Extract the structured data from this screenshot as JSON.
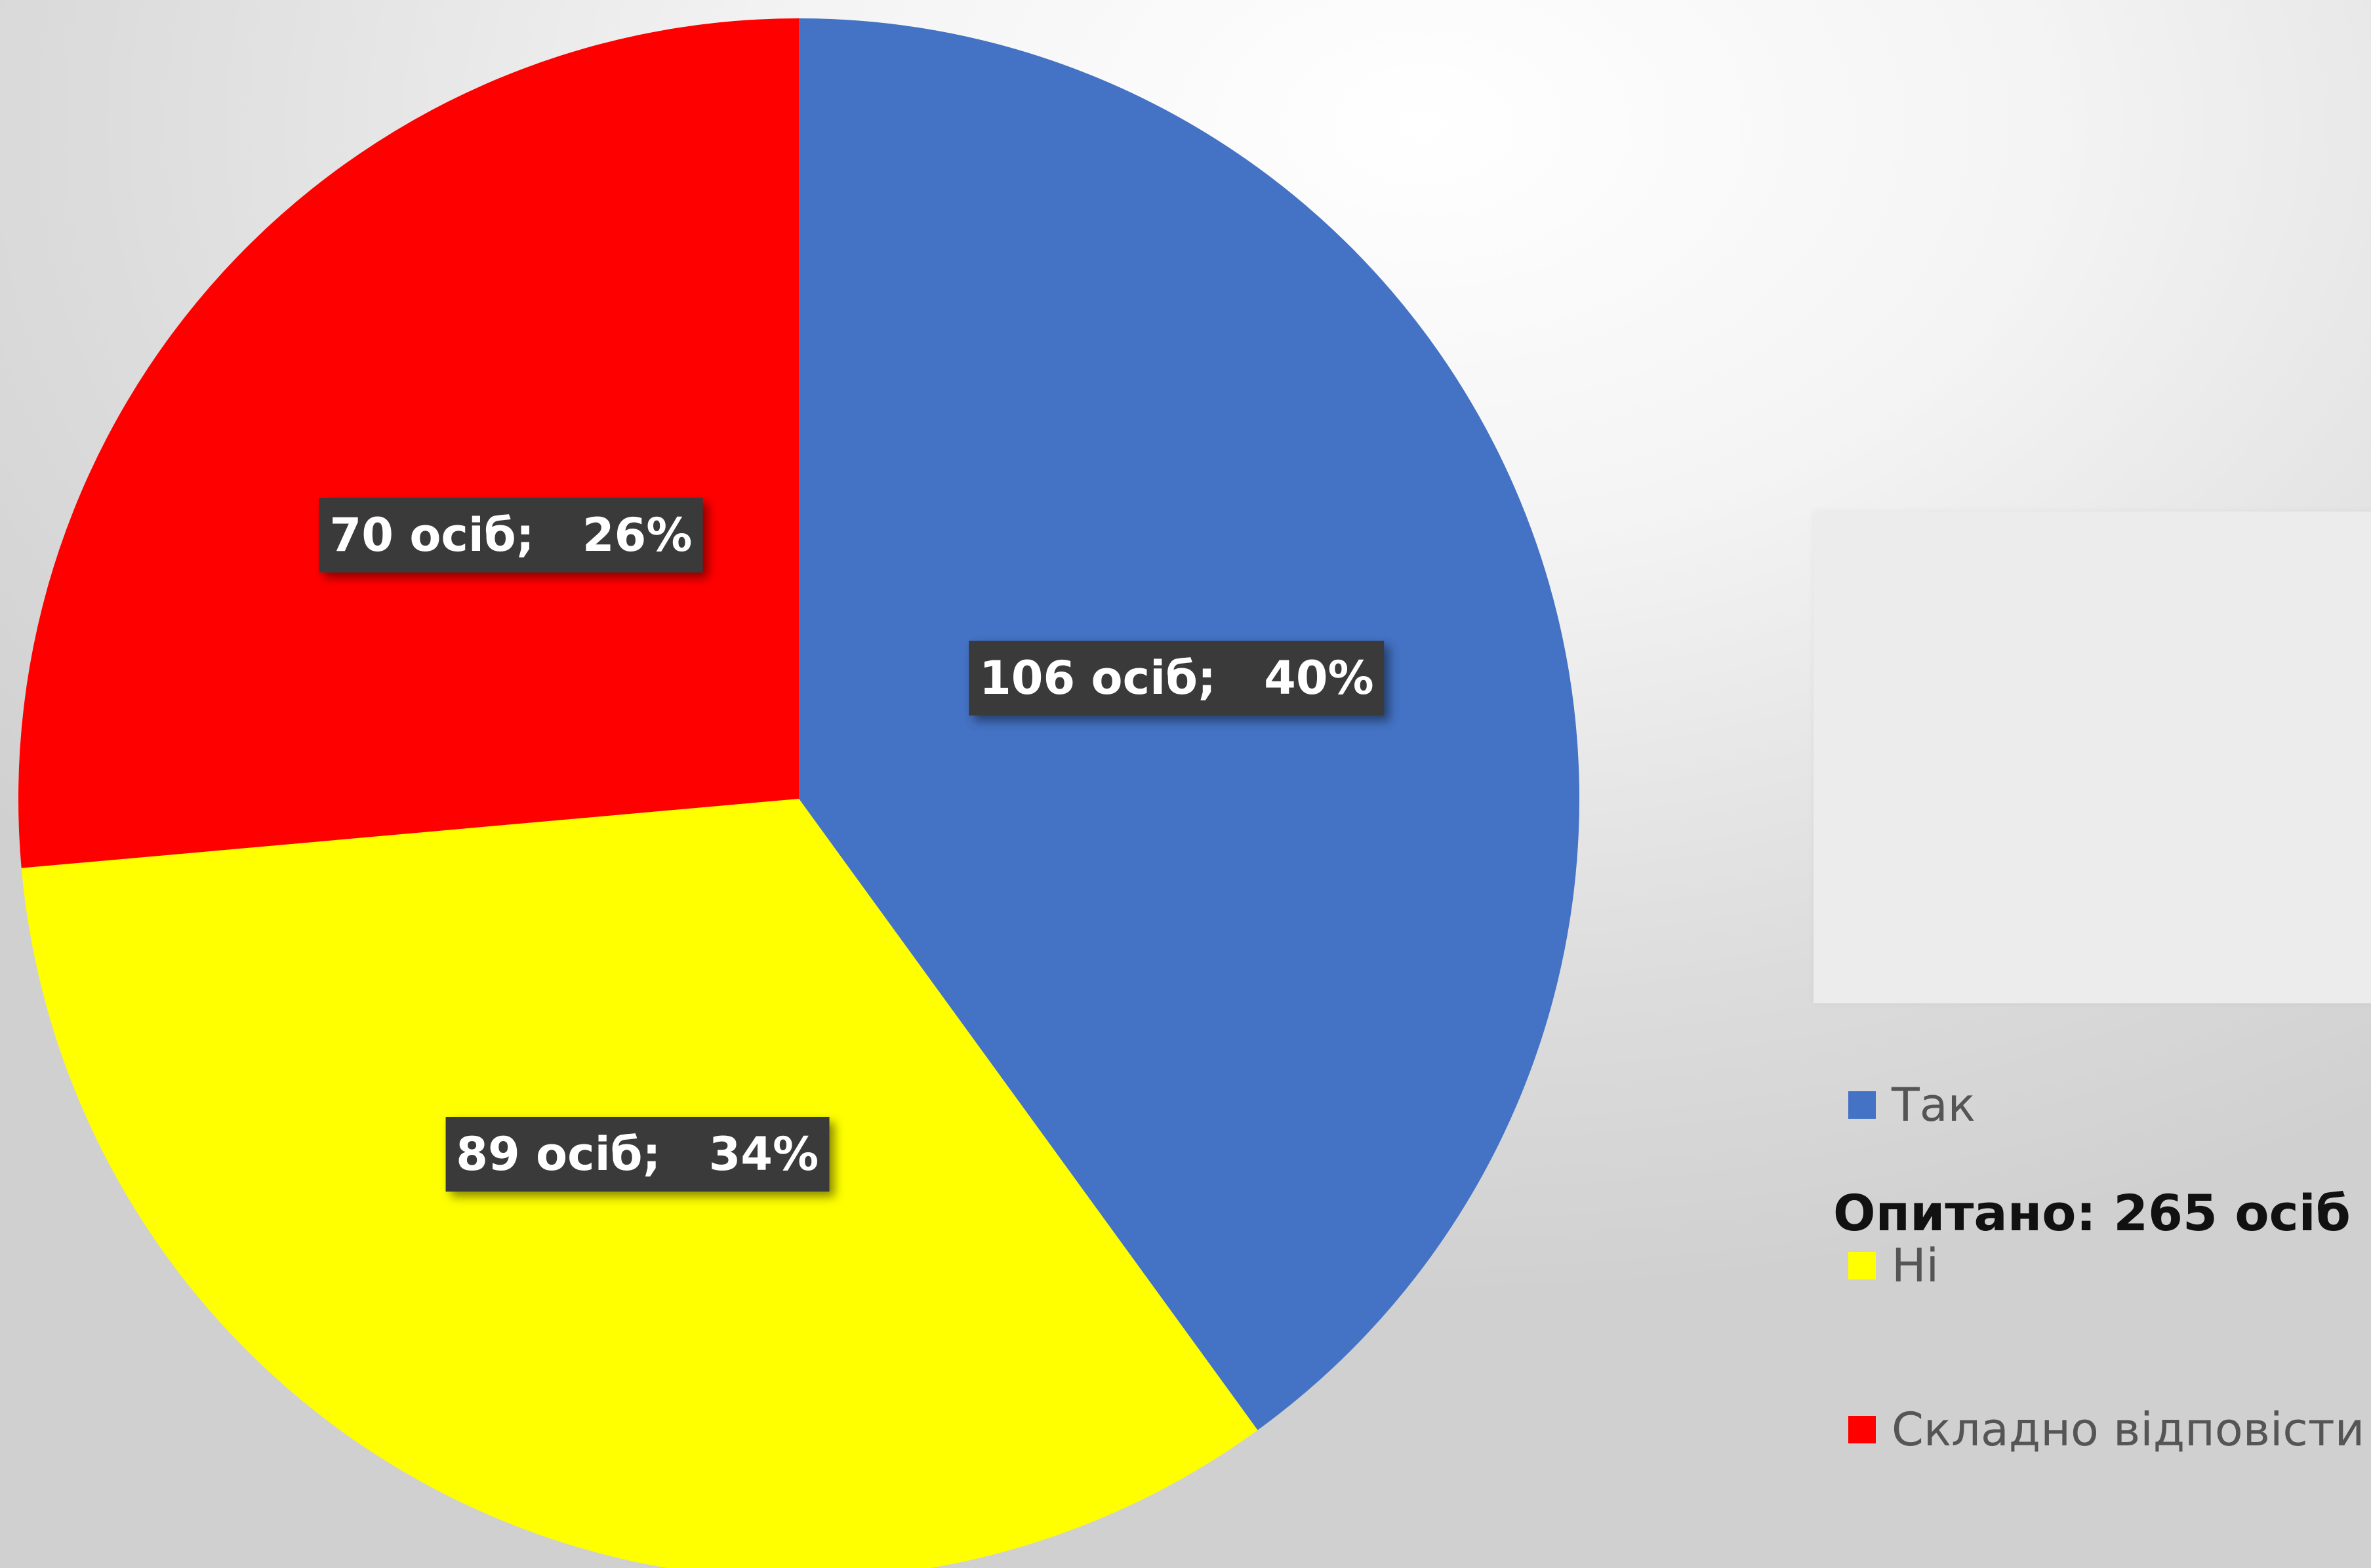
{
  "chart_data": {
    "type": "pie",
    "slices": [
      {
        "name": "Так",
        "value": 106,
        "percent": 40,
        "label": "106 осіб;   40%",
        "color": "#4472C4"
      },
      {
        "name": "Ні",
        "value": 89,
        "percent": 34,
        "label": "89 осіб;   34%",
        "color": "#FFFF00"
      },
      {
        "name": "Складно відповісти",
        "value": 70,
        "percent": 26,
        "label": "70 осіб;   26%",
        "color": "#FF0000"
      }
    ],
    "legend_position": "right",
    "total_text": "Опитано: 265 осіб"
  }
}
